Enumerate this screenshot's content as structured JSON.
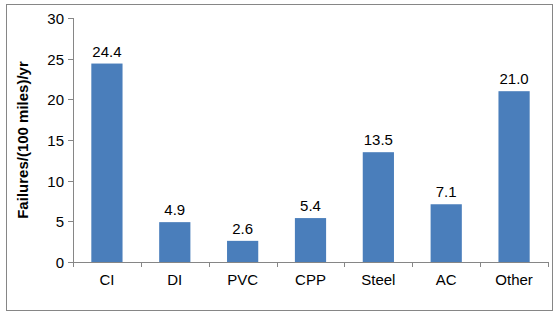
{
  "chart_data": {
    "type": "bar",
    "y_label": "Failures/(100 miles)/yr",
    "categories": [
      "CI",
      "DI",
      "PVC",
      "CPP",
      "Steel",
      "AC",
      "Other"
    ],
    "values": [
      24.4,
      4.9,
      2.6,
      5.4,
      13.5,
      7.1,
      21.0
    ],
    "value_labels": [
      "24.4",
      "4.9",
      "2.6",
      "5.4",
      "13.5",
      "7.1",
      "21.0"
    ],
    "color": "#4a7ebb",
    "ylim": [
      0,
      30
    ],
    "yticks": [
      0,
      5,
      10,
      15,
      20,
      25,
      30
    ],
    "grid": false,
    "data_labels": true
  }
}
